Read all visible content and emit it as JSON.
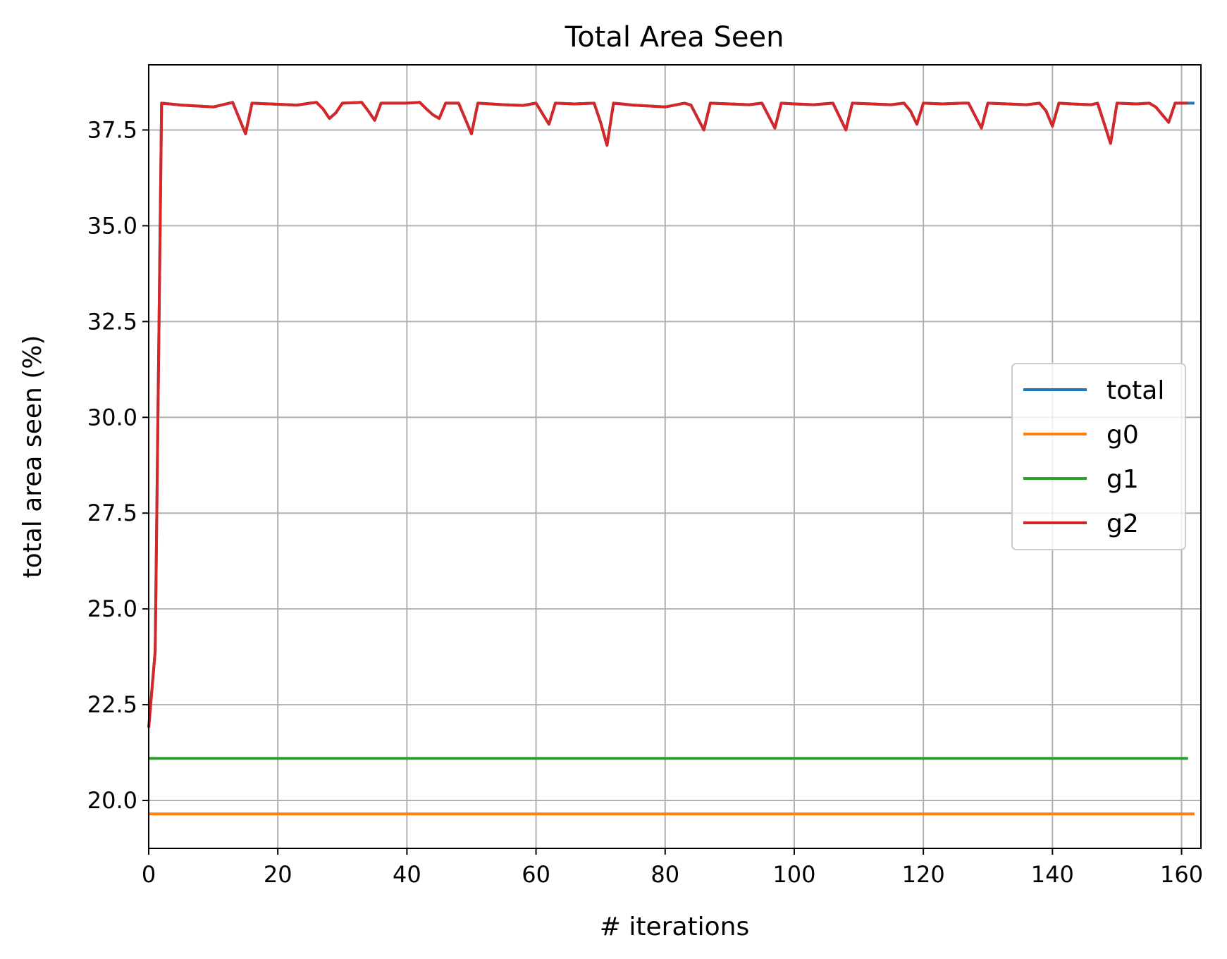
{
  "chart_data": {
    "type": "line",
    "title": "Total Area Seen",
    "xlabel": "# iterations",
    "ylabel": "total area seen (%)",
    "xlim": [
      0,
      163
    ],
    "ylim": [
      18.75,
      39.2
    ],
    "x_ticks": [
      0,
      20,
      40,
      60,
      80,
      100,
      120,
      140,
      160
    ],
    "x_tick_labels": [
      "0",
      "20",
      "40",
      "60",
      "80",
      "100",
      "120",
      "140",
      "160"
    ],
    "y_ticks": [
      20.0,
      22.5,
      25.0,
      27.5,
      30.0,
      32.5,
      35.0,
      37.5
    ],
    "y_tick_labels": [
      "20.0",
      "22.5",
      "25.0",
      "27.5",
      "30.0",
      "32.5",
      "35.0",
      "37.5"
    ],
    "grid": true,
    "legend_position": "center-right",
    "series": [
      {
        "name": "total",
        "color": "#1f77b4",
        "x": [
          0,
          1,
          2,
          5,
          10,
          13,
          15,
          16,
          20,
          23,
          25,
          26,
          27,
          28,
          29,
          30,
          33,
          34,
          35,
          36,
          40,
          42,
          43,
          44,
          45,
          46,
          48,
          50,
          51,
          55,
          58,
          60,
          62,
          63,
          66,
          69,
          70,
          71,
          72,
          75,
          80,
          83,
          84,
          86,
          87,
          90,
          93,
          95,
          97,
          98,
          100,
          103,
          106,
          108,
          109,
          112,
          115,
          117,
          118,
          119,
          120,
          123,
          126,
          127,
          129,
          130,
          133,
          136,
          138,
          139,
          140,
          141,
          143,
          146,
          147,
          149,
          150,
          153,
          155,
          156,
          158,
          159,
          161,
          162
        ],
        "values": [
          21.9,
          23.9,
          38.2,
          38.15,
          38.1,
          38.22,
          37.4,
          38.2,
          38.17,
          38.15,
          38.2,
          38.22,
          38.05,
          37.8,
          37.95,
          38.2,
          38.22,
          38.0,
          37.75,
          38.2,
          38.2,
          38.22,
          38.05,
          37.9,
          37.8,
          38.2,
          38.2,
          37.4,
          38.2,
          38.16,
          38.14,
          38.2,
          37.65,
          38.2,
          38.18,
          38.2,
          37.7,
          37.1,
          38.2,
          38.15,
          38.1,
          38.2,
          38.15,
          37.5,
          38.2,
          38.18,
          38.16,
          38.2,
          37.55,
          38.2,
          38.18,
          38.16,
          38.2,
          37.5,
          38.2,
          38.18,
          38.16,
          38.2,
          38.0,
          37.65,
          38.2,
          38.18,
          38.2,
          38.2,
          37.55,
          38.2,
          38.18,
          38.16,
          38.2,
          38.0,
          37.6,
          38.2,
          38.18,
          38.16,
          38.2,
          37.15,
          38.2,
          38.18,
          38.2,
          38.1,
          37.7,
          38.2,
          38.2,
          38.2
        ]
      },
      {
        "name": "g0",
        "color": "#ff7f0e",
        "x": [
          0,
          162
        ],
        "values": [
          19.65,
          19.65
        ]
      },
      {
        "name": "g1",
        "color": "#2ca02c",
        "x": [
          0,
          161
        ],
        "values": [
          21.1,
          21.1
        ]
      },
      {
        "name": "g2",
        "color": "#d62728",
        "x": [
          0,
          1,
          2,
          5,
          10,
          13,
          15,
          16,
          20,
          23,
          25,
          26,
          27,
          28,
          29,
          30,
          33,
          34,
          35,
          36,
          40,
          42,
          43,
          44,
          45,
          46,
          48,
          50,
          51,
          55,
          58,
          60,
          62,
          63,
          66,
          69,
          70,
          71,
          72,
          75,
          80,
          83,
          84,
          86,
          87,
          90,
          93,
          95,
          97,
          98,
          100,
          103,
          106,
          108,
          109,
          112,
          115,
          117,
          118,
          119,
          120,
          123,
          126,
          127,
          129,
          130,
          133,
          136,
          138,
          139,
          140,
          141,
          143,
          146,
          147,
          149,
          150,
          153,
          155,
          156,
          158,
          159,
          161
        ],
        "values": [
          21.9,
          23.9,
          38.2,
          38.15,
          38.1,
          38.22,
          37.4,
          38.2,
          38.17,
          38.15,
          38.2,
          38.22,
          38.05,
          37.8,
          37.95,
          38.2,
          38.22,
          38.0,
          37.75,
          38.2,
          38.2,
          38.22,
          38.05,
          37.9,
          37.8,
          38.2,
          38.2,
          37.4,
          38.2,
          38.16,
          38.14,
          38.2,
          37.65,
          38.2,
          38.18,
          38.2,
          37.7,
          37.1,
          38.2,
          38.15,
          38.1,
          38.2,
          38.15,
          37.5,
          38.2,
          38.18,
          38.16,
          38.2,
          37.55,
          38.2,
          38.18,
          38.16,
          38.2,
          37.5,
          38.2,
          38.18,
          38.16,
          38.2,
          38.0,
          37.65,
          38.2,
          38.18,
          38.2,
          38.2,
          37.55,
          38.2,
          38.18,
          38.16,
          38.2,
          38.0,
          37.6,
          38.2,
          38.18,
          38.16,
          38.2,
          37.15,
          38.2,
          38.18,
          38.2,
          38.1,
          37.7,
          38.2,
          38.2
        ]
      }
    ]
  }
}
